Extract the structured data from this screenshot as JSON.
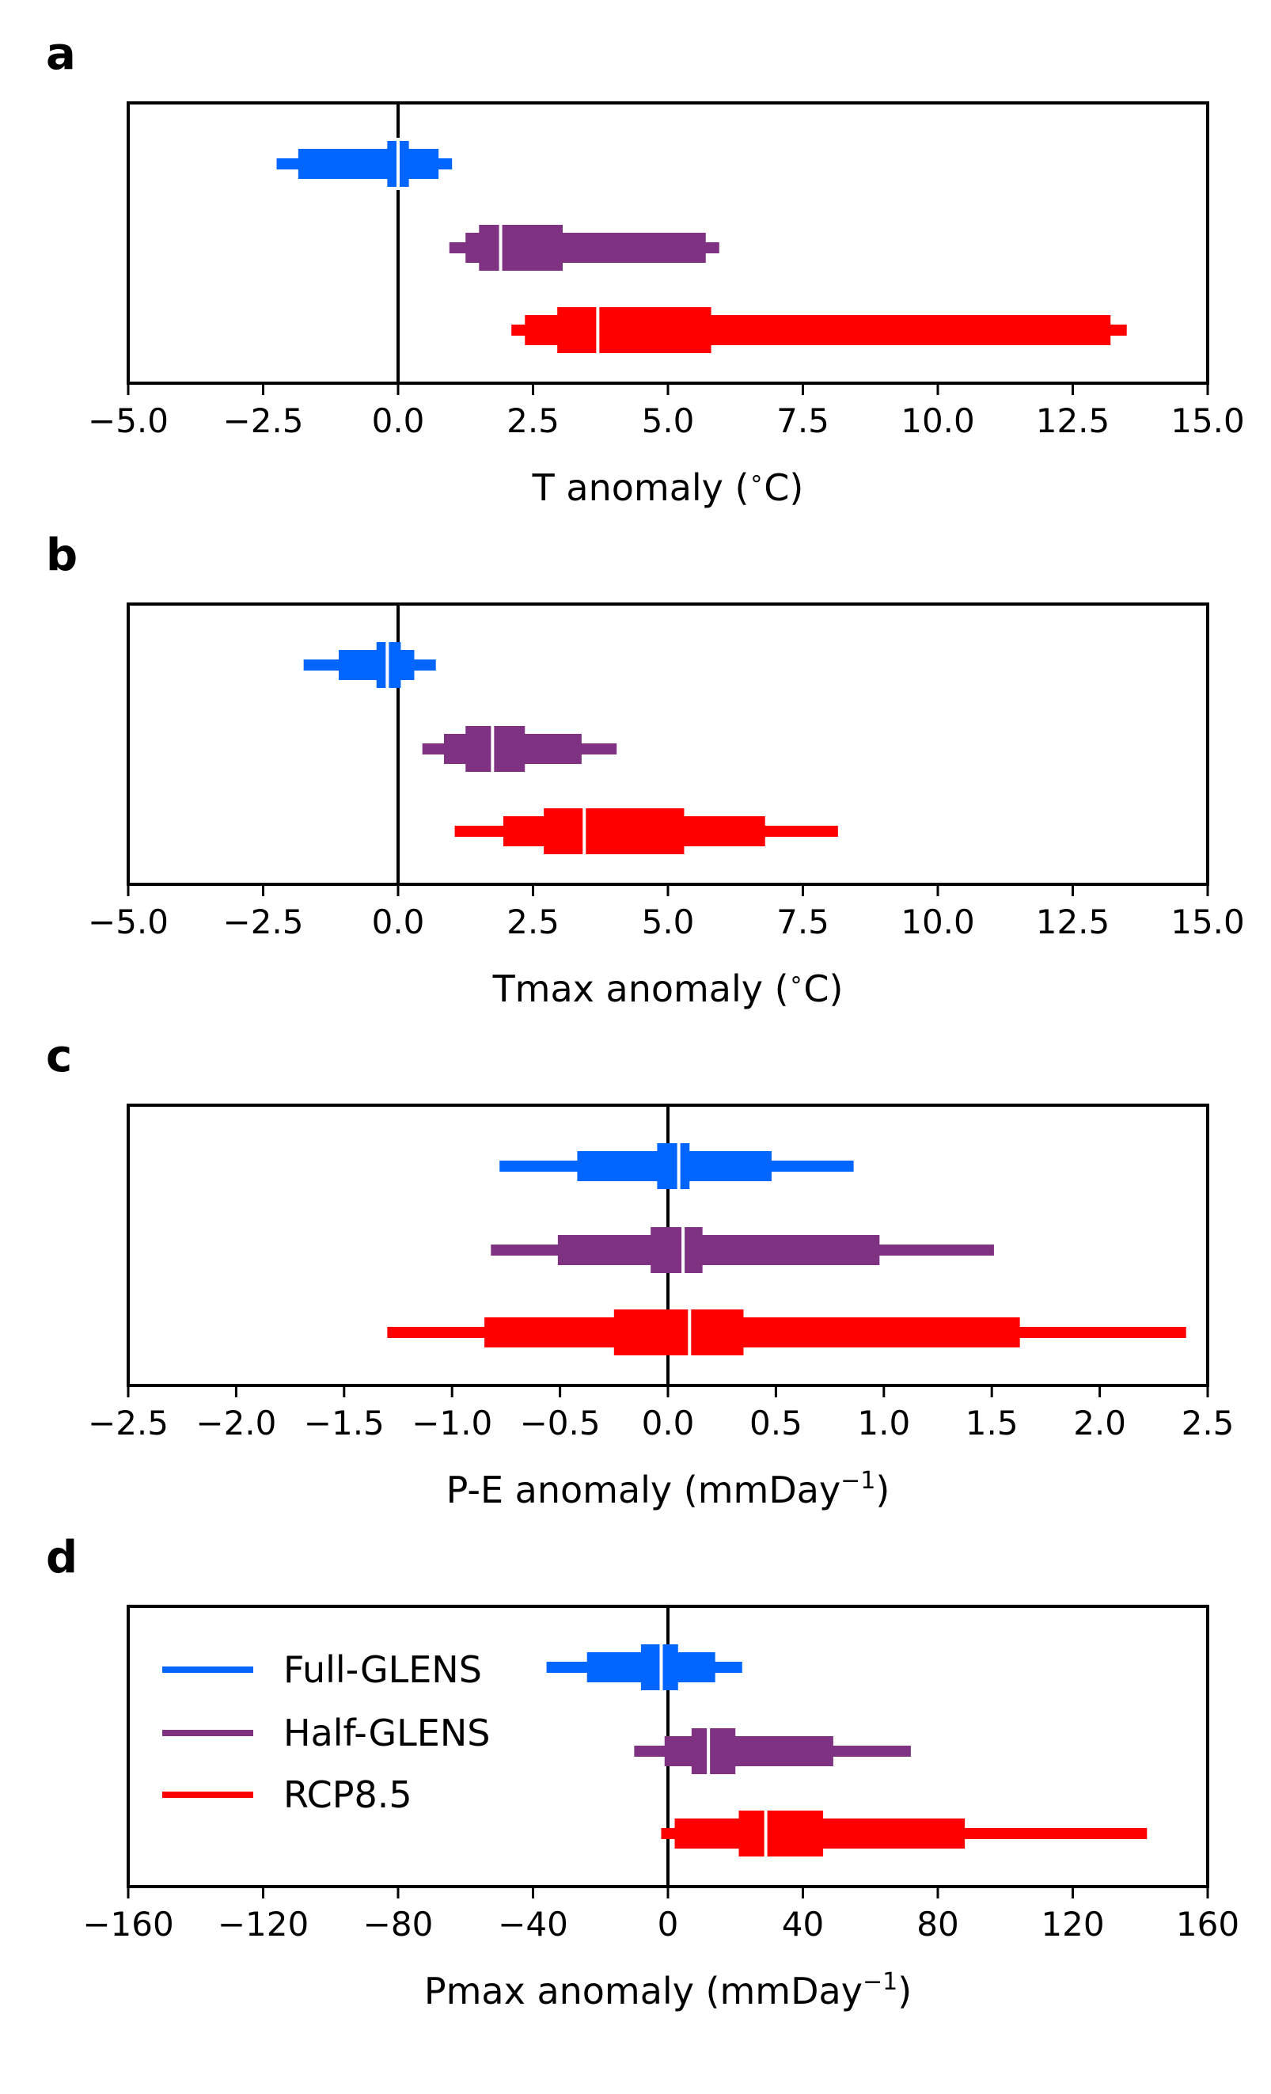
{
  "colors": {
    "Full-GLENS": "#0066ff",
    "Half-GLENS": "#7f3182",
    "RCP8.5": "#ff0000",
    "zero_line": "#000000",
    "median_marker": "#ffffff"
  },
  "legend": {
    "placement": "upper-left of panel d",
    "entries": [
      "Full-GLENS",
      "Half-GLENS",
      "RCP8.5"
    ]
  },
  "chart_data": [
    {
      "type": "box-range",
      "panel": "a",
      "xlabel_main": "T anomaly (",
      "xlabel_sup": "∘",
      "xlabel_tail": "C)",
      "xlim": [
        -5,
        15
      ],
      "ticks": [
        -5,
        -2.5,
        0,
        2.5,
        5,
        7.5,
        10,
        12.5,
        15
      ],
      "tick_labels": [
        "−5.0",
        "−2.5",
        "0.0",
        "2.5",
        "5.0",
        "7.5",
        "10.0",
        "12.5",
        "15.0"
      ],
      "zero_line": 0,
      "series": [
        {
          "name": "Full-GLENS",
          "median": 0.0,
          "ranges": [
            [
              -2.25,
              1.0
            ],
            [
              -1.85,
              0.75
            ],
            [
              -0.2,
              0.2
            ]
          ]
        },
        {
          "name": "Half-GLENS",
          "median": 1.9,
          "ranges": [
            [
              0.95,
              5.95
            ],
            [
              1.25,
              5.7
            ],
            [
              1.5,
              3.05
            ]
          ]
        },
        {
          "name": "RCP8.5",
          "median": 3.7,
          "ranges": [
            [
              2.1,
              13.5
            ],
            [
              2.35,
              13.2
            ],
            [
              2.95,
              5.8
            ]
          ]
        }
      ]
    },
    {
      "type": "box-range",
      "panel": "b",
      "xlabel_main": "Tmax anomaly (",
      "xlabel_sup": "∘",
      "xlabel_tail": "C)",
      "xlim": [
        -5,
        15
      ],
      "ticks": [
        -5,
        -2.5,
        0,
        2.5,
        5,
        7.5,
        10,
        12.5,
        15
      ],
      "tick_labels": [
        "−5.0",
        "−2.5",
        "0.0",
        "2.5",
        "5.0",
        "7.5",
        "10.0",
        "12.5",
        "15.0"
      ],
      "zero_line": 0,
      "series": [
        {
          "name": "Full-GLENS",
          "median": -0.2,
          "ranges": [
            [
              -1.75,
              0.7
            ],
            [
              -1.1,
              0.3
            ],
            [
              -0.4,
              0.05
            ]
          ]
        },
        {
          "name": "Half-GLENS",
          "median": 1.75,
          "ranges": [
            [
              0.45,
              4.05
            ],
            [
              0.85,
              3.4
            ],
            [
              1.25,
              2.35
            ]
          ]
        },
        {
          "name": "RCP8.5",
          "median": 3.45,
          "ranges": [
            [
              1.05,
              8.15
            ],
            [
              1.95,
              6.8
            ],
            [
              2.7,
              5.3
            ]
          ]
        }
      ]
    },
    {
      "type": "box-range",
      "panel": "c",
      "xlabel_main": "P-E anomaly (mmDay",
      "xlabel_sup": "−1",
      "xlabel_tail": ")",
      "xlim": [
        -2.5,
        2.5
      ],
      "ticks": [
        -2.5,
        -2.0,
        -1.5,
        -1.0,
        -0.5,
        0,
        0.5,
        1.0,
        1.5,
        2.0,
        2.5
      ],
      "tick_labels": [
        "−2.5",
        "−2.0",
        "−1.5",
        "−1.0",
        "−0.5",
        "0.0",
        "0.5",
        "1.0",
        "1.5",
        "2.0",
        "2.5"
      ],
      "zero_line": 0,
      "series": [
        {
          "name": "Full-GLENS",
          "median": 0.05,
          "ranges": [
            [
              -0.78,
              0.86
            ],
            [
              -0.42,
              0.48
            ],
            [
              -0.05,
              0.1
            ]
          ]
        },
        {
          "name": "Half-GLENS",
          "median": 0.07,
          "ranges": [
            [
              -0.82,
              1.51
            ],
            [
              -0.51,
              0.98
            ],
            [
              -0.08,
              0.16
            ]
          ]
        },
        {
          "name": "RCP8.5",
          "median": 0.1,
          "ranges": [
            [
              -1.3,
              2.4
            ],
            [
              -0.85,
              1.63
            ],
            [
              -0.25,
              0.35
            ]
          ]
        }
      ]
    },
    {
      "type": "box-range",
      "panel": "d",
      "xlabel_main": "Pmax anomaly (mmDay",
      "xlabel_sup": "−1",
      "xlabel_tail": ")",
      "xlim": [
        -160,
        160
      ],
      "ticks": [
        -160,
        -120,
        -80,
        -40,
        0,
        40,
        80,
        120,
        160
      ],
      "tick_labels": [
        "−160",
        "−120",
        "−80",
        "−40",
        "0",
        "40",
        "80",
        "120",
        "160"
      ],
      "zero_line": 0,
      "series": [
        {
          "name": "Full-GLENS",
          "median": -2,
          "ranges": [
            [
              -36,
              22
            ],
            [
              -24,
              14
            ],
            [
              -8,
              3
            ]
          ]
        },
        {
          "name": "Half-GLENS",
          "median": 12,
          "ranges": [
            [
              -10,
              72
            ],
            [
              -1,
              49
            ],
            [
              7,
              20
            ]
          ]
        },
        {
          "name": "RCP8.5",
          "median": 29,
          "ranges": [
            [
              -2,
              142
            ],
            [
              2,
              88
            ],
            [
              21,
              46
            ]
          ]
        }
      ]
    }
  ]
}
